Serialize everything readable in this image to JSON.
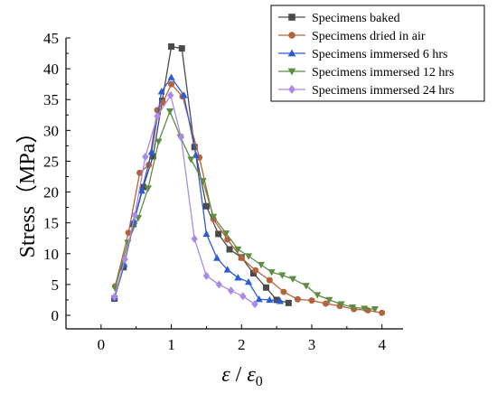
{
  "chart_data": {
    "type": "line",
    "title": "",
    "xlabel": "ε / ε0",
    "xlabel_parts": {
      "num": "ε",
      "sep": " / ",
      "den": "ε",
      "sub": "0"
    },
    "ylabel": "Stress（MPa）",
    "xlim": [
      -0.5,
      4.3
    ],
    "ylim": [
      -2.2,
      45
    ],
    "xticks": [
      0,
      1,
      2,
      3,
      4
    ],
    "yticks": [
      0,
      5,
      10,
      15,
      20,
      25,
      30,
      35,
      40,
      45
    ],
    "grid": false,
    "legend_position": "top-right",
    "series": [
      {
        "name": "Specimens baked",
        "color": "#4a4a4a",
        "marker": "square",
        "x": [
          0.19,
          0.32,
          0.46,
          0.6,
          0.74,
          0.87,
          1.0,
          1.15,
          1.33,
          1.5,
          1.67,
          1.83,
          2.0,
          2.17,
          2.35,
          2.5,
          2.67
        ],
        "y": [
          2.7,
          7.8,
          14.8,
          20.8,
          25.8,
          34.8,
          43.6,
          43.3,
          27.3,
          17.7,
          13.2,
          10.7,
          9.4,
          6.8,
          4.5,
          2.5,
          2.0
        ]
      },
      {
        "name": "Specimens dried in air",
        "color": "#b5633c",
        "marker": "circle",
        "x": [
          0.2,
          0.39,
          0.55,
          0.68,
          0.8,
          0.88,
          1.0,
          1.16,
          1.4,
          1.6,
          1.8,
          2.0,
          2.2,
          2.4,
          2.6,
          2.8,
          3.0,
          3.2,
          3.4,
          3.6,
          3.8,
          4.0
        ],
        "y": [
          4.7,
          13.4,
          23.1,
          24.4,
          33.3,
          34.5,
          37.5,
          35.5,
          25.6,
          15.6,
          12.3,
          9.3,
          7.3,
          5.7,
          3.8,
          2.6,
          2.4,
          1.9,
          1.5,
          1.0,
          0.8,
          0.4
        ]
      },
      {
        "name": "Specimens immersed 6 hrs",
        "color": "#2c5bd6",
        "marker": "triangle-up",
        "x": [
          0.19,
          0.33,
          0.47,
          0.58,
          0.72,
          0.86,
          1.0,
          1.18,
          1.35,
          1.5,
          1.65,
          1.8,
          1.95,
          2.1,
          2.25,
          2.4,
          2.55
        ],
        "y": [
          2.9,
          8.3,
          15.3,
          20.2,
          26.5,
          36.3,
          38.6,
          35.7,
          26.0,
          13.2,
          9.3,
          7.4,
          6.1,
          5.4,
          2.6,
          2.5,
          2.3
        ]
      },
      {
        "name": "Specimens immersed 12 hrs",
        "color": "#5d8c43",
        "marker": "triangle-down",
        "x": [
          0.2,
          0.38,
          0.53,
          0.67,
          0.82,
          0.98,
          1.13,
          1.28,
          1.45,
          1.6,
          1.78,
          1.95,
          2.1,
          2.28,
          2.43,
          2.58,
          2.73,
          2.92,
          3.08,
          3.25,
          3.42,
          3.58,
          3.75,
          3.9
        ],
        "y": [
          4.4,
          11.8,
          15.8,
          20.6,
          28.2,
          33.1,
          28.9,
          25.3,
          21.8,
          16.0,
          13.3,
          10.7,
          9.6,
          8.2,
          7.0,
          6.5,
          5.9,
          4.8,
          3.3,
          2.5,
          1.8,
          1.3,
          1.1,
          1.0
        ]
      },
      {
        "name": "Specimens immersed 24 hrs",
        "color": "#a98be6",
        "marker": "diamond",
        "x": [
          0.19,
          0.34,
          0.48,
          0.63,
          0.8,
          0.99,
          1.14,
          1.33,
          1.5,
          1.68,
          1.85,
          2.02,
          2.19
        ],
        "y": [
          3.0,
          9.1,
          16.2,
          25.7,
          32.3,
          35.7,
          28.9,
          12.4,
          6.4,
          5.0,
          4.0,
          3.1,
          1.8
        ]
      }
    ]
  }
}
